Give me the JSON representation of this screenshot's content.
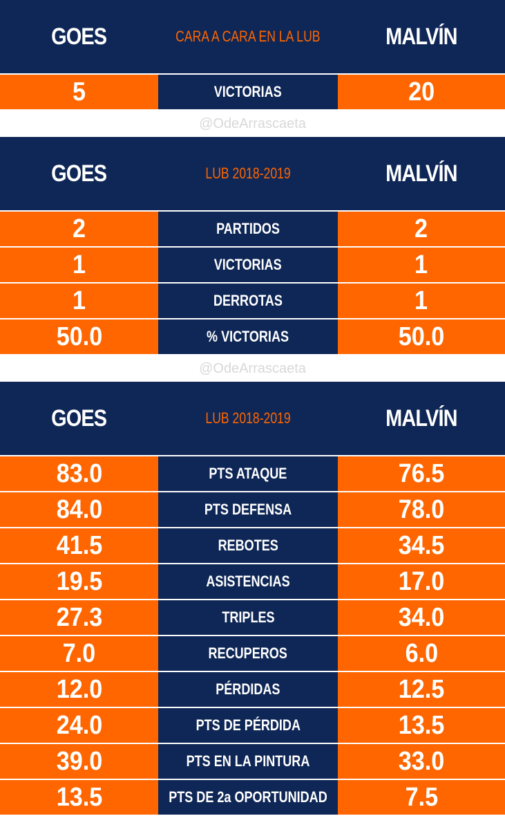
{
  "sections": [
    {
      "header": {
        "left": "GOES",
        "title": "CARA A CARA EN LA LUB",
        "right": "MALVÍN"
      },
      "rows": [
        [
          "5",
          "VICTORIAS",
          "20"
        ]
      ]
    },
    {
      "header": {
        "left": "GOES",
        "title": "LUB 2018-2019",
        "right": "MALVÍN"
      },
      "rows": [
        [
          "2",
          "PARTIDOS",
          "2"
        ],
        [
          "1",
          "VICTORIAS",
          "1"
        ],
        [
          "1",
          "DERROTAS",
          "1"
        ],
        [
          "50.0",
          "% VICTORIAS",
          "50.0"
        ]
      ]
    },
    {
      "header": {
        "left": "GOES",
        "title": "LUB 2018-2019",
        "right": "MALVÍN"
      },
      "rows": [
        [
          "83.0",
          "PTS ATAQUE",
          "76.5"
        ],
        [
          "84.0",
          "PTS DEFENSA",
          "78.0"
        ],
        [
          "41.5",
          "REBOTES",
          "34.5"
        ],
        [
          "19.5",
          "ASISTENCIAS",
          "17.0"
        ],
        [
          "27.3",
          "TRIPLES",
          "34.0"
        ],
        [
          "7.0",
          "RECUPEROS",
          "6.0"
        ],
        [
          "12.0",
          "PÉRDIDAS",
          "12.5"
        ],
        [
          "24.0",
          "PTS DE PÉRDIDA",
          "13.5"
        ],
        [
          "39.0",
          "PTS EN LA PINTURA",
          "33.0"
        ],
        [
          "13.5",
          "PTS DE 2a OPORTUNIDAD",
          "7.5"
        ]
      ]
    }
  ],
  "watermarks": [
    "@OdeArrascaeta",
    "@OdeArrascaeta"
  ]
}
